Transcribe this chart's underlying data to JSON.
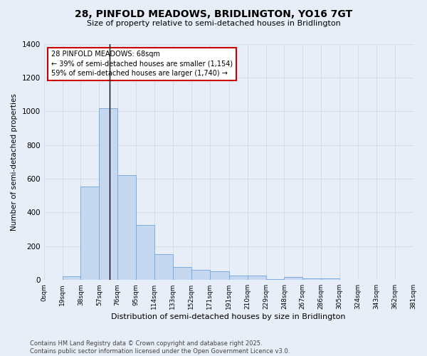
{
  "title_line1": "28, PINFOLD MEADOWS, BRIDLINGTON, YO16 7GT",
  "title_line2": "Size of property relative to semi-detached houses in Bridlington",
  "xlabel": "Distribution of semi-detached houses by size in Bridlington",
  "ylabel": "Number of semi-detached properties",
  "footer_line1": "Contains HM Land Registry data © Crown copyright and database right 2025.",
  "footer_line2": "Contains public sector information licensed under the Open Government Licence v3.0.",
  "annotation_title": "28 PINFOLD MEADOWS: 68sqm",
  "annotation_line1": "← 39% of semi-detached houses are smaller (1,154)",
  "annotation_line2": "59% of semi-detached houses are larger (1,740) →",
  "property_size": 68,
  "bin_edges": [
    0,
    19,
    38,
    57,
    76,
    95,
    114,
    133,
    152,
    171,
    191,
    210,
    229,
    248,
    267,
    286,
    305,
    324,
    343,
    362,
    381
  ],
  "bar_heights": [
    0,
    20,
    555,
    1020,
    620,
    325,
    152,
    75,
    62,
    52,
    28,
    28,
    5,
    18,
    10,
    10,
    0,
    0,
    0,
    0
  ],
  "bar_color": "#c5d8f0",
  "bar_edge_color": "#7aade0",
  "vline_color": "#000000",
  "annotation_box_edge_color": "#cc0000",
  "background_color": "#e8eef8",
  "grid_color": "#d8dce8",
  "ylim": [
    0,
    1400
  ],
  "yticks": [
    0,
    200,
    400,
    600,
    800,
    1000,
    1200,
    1400
  ]
}
